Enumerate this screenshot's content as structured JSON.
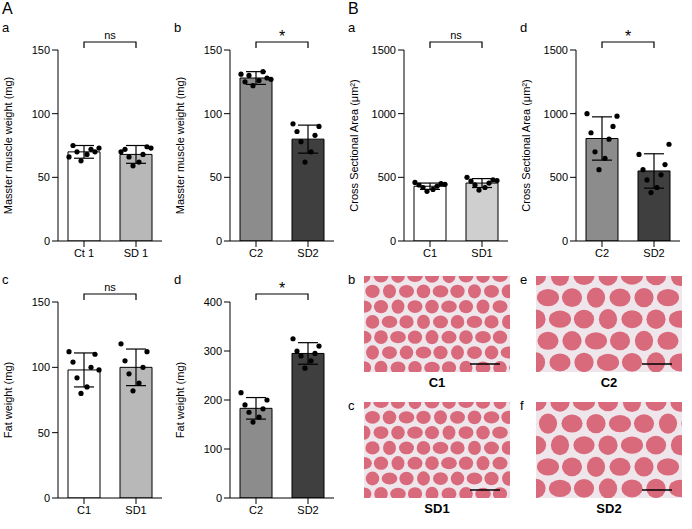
{
  "chart_data": [
    {
      "type": "bar",
      "group": "A",
      "letter": "a",
      "ylabel": "Masster muscle weight (mg)",
      "categories": [
        "Ct 1",
        "SD 1"
      ],
      "values": [
        70,
        68
      ],
      "error": [
        5,
        7
      ],
      "points": [
        [
          63,
          68,
          70,
          72,
          75,
          70,
          66,
          73
        ],
        [
          59,
          62,
          66,
          68,
          72,
          74,
          70,
          73
        ]
      ],
      "colors": [
        "#ffffff",
        "#b8b8b8"
      ],
      "ylim": [
        0,
        150
      ],
      "yticks": [
        0,
        50,
        100,
        150
      ],
      "significance": "ns"
    },
    {
      "type": "bar",
      "group": "A",
      "letter": "b",
      "ylabel": "Masster muscle weight (mg)",
      "categories": [
        "C2",
        "SD2"
      ],
      "values": [
        128,
        80
      ],
      "error": [
        5,
        11
      ],
      "points": [
        [
          122,
          126,
          130,
          133,
          125,
          128,
          131,
          127
        ],
        [
          62,
          70,
          78,
          83,
          86,
          90,
          92
        ]
      ],
      "colors": [
        "#8c8c8c",
        "#3f3f3f"
      ],
      "ylim": [
        0,
        150
      ],
      "yticks": [
        0,
        50,
        100,
        150
      ],
      "significance": "*"
    },
    {
      "type": "bar",
      "group": "A",
      "letter": "c",
      "ylabel": "Fat weight (mg)",
      "categories": [
        "C1",
        "SD1"
      ],
      "values": [
        98,
        100
      ],
      "error": [
        13,
        14
      ],
      "points": [
        [
          80,
          85,
          92,
          100,
          104,
          110,
          112,
          98
        ],
        [
          82,
          88,
          95,
          100,
          105,
          112,
          118
        ]
      ],
      "colors": [
        "#ffffff",
        "#b8b8b8"
      ],
      "ylim": [
        0,
        150
      ],
      "yticks": [
        0,
        50,
        100,
        150
      ],
      "significance": "ns"
    },
    {
      "type": "bar",
      "group": "A",
      "letter": "d",
      "ylabel": "Fat weight (mg)",
      "categories": [
        "C2",
        "SD2"
      ],
      "values": [
        183,
        295
      ],
      "error": [
        22,
        22
      ],
      "points": [
        [
          155,
          165,
          175,
          182,
          190,
          200,
          215
        ],
        [
          265,
          280,
          290,
          295,
          300,
          310,
          325
        ]
      ],
      "colors": [
        "#8c8c8c",
        "#3f3f3f"
      ],
      "ylim": [
        0,
        400
      ],
      "yticks": [
        0,
        100,
        200,
        300,
        400
      ],
      "significance": "*"
    },
    {
      "type": "bar",
      "group": "B",
      "letter": "a",
      "ylabel": "Cross Sectional Area (μm²)",
      "categories": [
        "C1",
        "SD1"
      ],
      "values": [
        430,
        455
      ],
      "error": [
        25,
        35
      ],
      "points": [
        [
          390,
          405,
          420,
          430,
          440,
          450,
          460,
          445
        ],
        [
          400,
          420,
          440,
          455,
          470,
          480,
          500,
          475
        ]
      ],
      "colors": [
        "#ffffff",
        "#cfcfcf"
      ],
      "ylim": [
        0,
        1500
      ],
      "yticks": [
        0,
        500,
        1000,
        1500
      ],
      "significance": "ns"
    },
    {
      "type": "bar",
      "group": "B",
      "letter": "d",
      "ylabel": "Cross Sectional Area (μm²)",
      "categories": [
        "C2",
        "SD2"
      ],
      "values": [
        805,
        550
      ],
      "error": [
        170,
        135
      ],
      "points": [
        [
          560,
          650,
          700,
          800,
          850,
          900,
          1000,
          980
        ],
        [
          380,
          420,
          480,
          520,
          560,
          600,
          680,
          760
        ]
      ],
      "colors": [
        "#8c8c8c",
        "#3f3f3f"
      ],
      "ylim": [
        0,
        1500
      ],
      "yticks": [
        0,
        500,
        1000,
        1500
      ],
      "significance": "*"
    }
  ],
  "images": [
    {
      "letter": "b",
      "label": "C1"
    },
    {
      "letter": "c",
      "label": "SD1"
    },
    {
      "letter": "e",
      "label": "C2"
    },
    {
      "letter": "f",
      "label": "SD2"
    }
  ]
}
